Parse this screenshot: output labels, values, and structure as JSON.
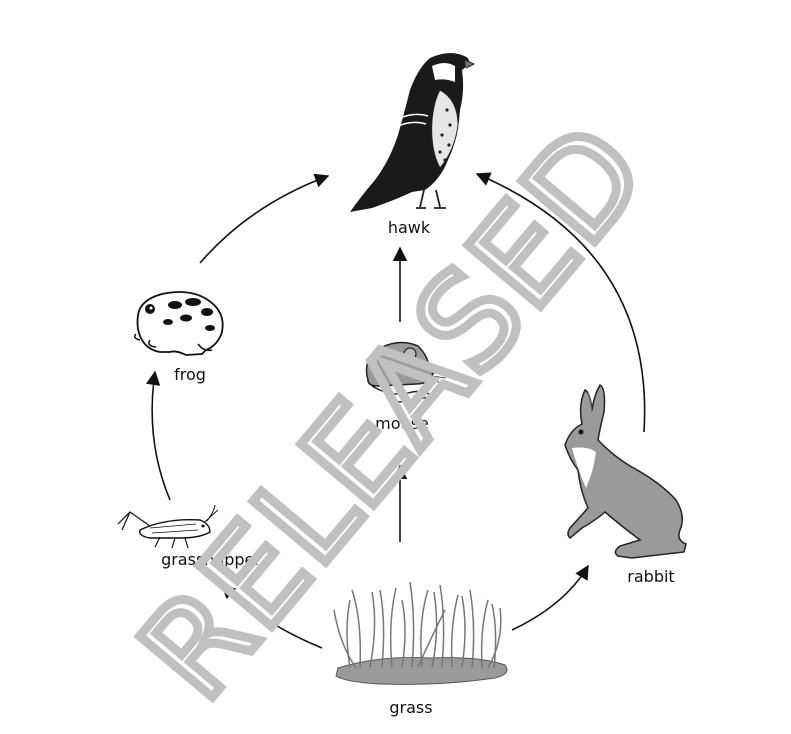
{
  "organisms": {
    "hawk": "hawk",
    "frog": "frog",
    "mouse": "mouse",
    "grasshopper": "grasshopper",
    "rabbit": "rabbit",
    "grass": "grass"
  },
  "watermark": "RELEASED",
  "icons": {
    "hawk": "hawk-icon",
    "frog": "frog-icon",
    "mouse": "mouse-icon",
    "grasshopper": "grasshopper-icon",
    "rabbit": "rabbit-icon",
    "grass": "grass-icon"
  },
  "energy_flow": [
    {
      "from": "grass",
      "to": "grasshopper"
    },
    {
      "from": "grasshopper",
      "to": "frog"
    },
    {
      "from": "frog",
      "to": "hawk"
    },
    {
      "from": "grass",
      "to": "mouse"
    },
    {
      "from": "mouse",
      "to": "hawk"
    },
    {
      "from": "grass",
      "to": "rabbit"
    },
    {
      "from": "rabbit",
      "to": "hawk"
    }
  ],
  "colors": {
    "ink": "#111111",
    "animal_gray": "#9a9a9a",
    "dark_gray": "#444444",
    "watermark": "#c8c8c8"
  }
}
